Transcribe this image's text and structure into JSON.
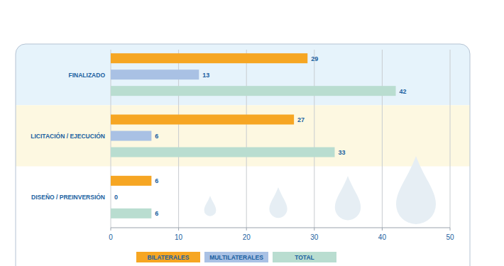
{
  "chart_data": {
    "type": "bar",
    "orientation": "horizontal",
    "categories": [
      "FINALIZADO",
      "LICITACIÓN / EJECUCIÓN",
      "DISEÑO / PREINVERSIÓN"
    ],
    "series": [
      {
        "name": "BILATERALES",
        "color": "#f6a623",
        "values": [
          29,
          27,
          6
        ]
      },
      {
        "name": "MULTILATERALES",
        "color": "#a9c1e4",
        "values": [
          13,
          6,
          0
        ]
      },
      {
        "name": "TOTAL",
        "color": "#b9ddd0",
        "values": [
          42,
          33,
          6
        ]
      }
    ],
    "xlim": [
      0,
      50
    ],
    "xticks": [
      0,
      10,
      20,
      30,
      40,
      50
    ],
    "grid": true,
    "data_labels": true,
    "legend": "bottom"
  }
}
